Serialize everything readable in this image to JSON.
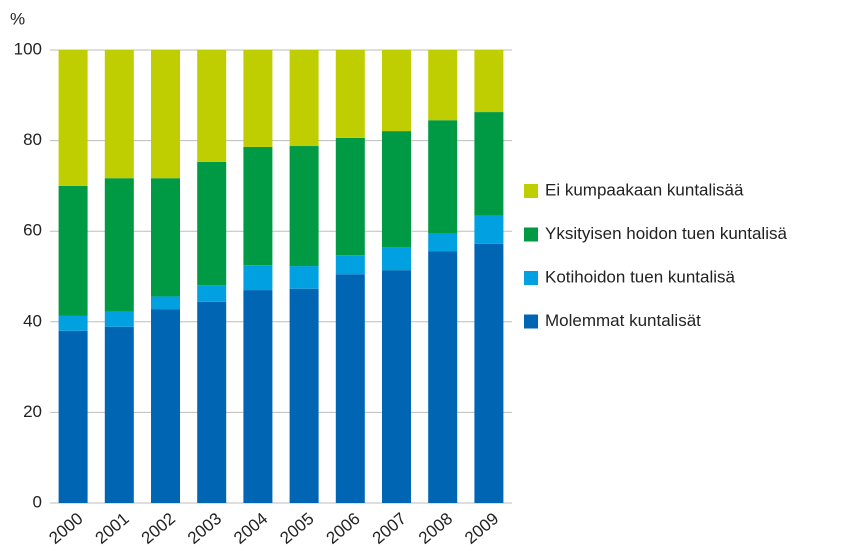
{
  "chart_data": {
    "type": "stacked-bar",
    "ylabel": "%",
    "categories": [
      "2000",
      "2001",
      "2002",
      "2003",
      "2004",
      "2005",
      "2006",
      "2007",
      "2008",
      "2009"
    ],
    "series": [
      {
        "name": "Molemmat kuntalisät",
        "color": "#0066b3",
        "values": [
          38,
          38.9,
          42.8,
          44.4,
          47,
          47.3,
          50.5,
          51.4,
          55.6,
          57.2
        ]
      },
      {
        "name": "Kotihoidon tuen kuntalisä",
        "color": "#00a0e1",
        "values": [
          3.3,
          3.3,
          2.8,
          3.7,
          5.5,
          5,
          4.2,
          5.1,
          4,
          6.2
        ]
      },
      {
        "name": "Yksityisen hoidon tuen kuntalisä",
        "color": "#009a44",
        "values": [
          28.7,
          29.5,
          26.1,
          27.2,
          26.1,
          26.5,
          25.9,
          25.6,
          24.9,
          22.9
        ]
      },
      {
        "name": "Ei kumpaakaan kuntalisää",
        "color": "#bfce00",
        "values": [
          30,
          28.3,
          28.3,
          24.7,
          21.4,
          21.2,
          19.4,
          17.9,
          15.5,
          13.7
        ]
      }
    ],
    "ylim": [
      0,
      100
    ],
    "yticks": [
      0,
      20,
      40,
      60,
      80,
      100
    ],
    "grid": true,
    "legend": "right"
  }
}
